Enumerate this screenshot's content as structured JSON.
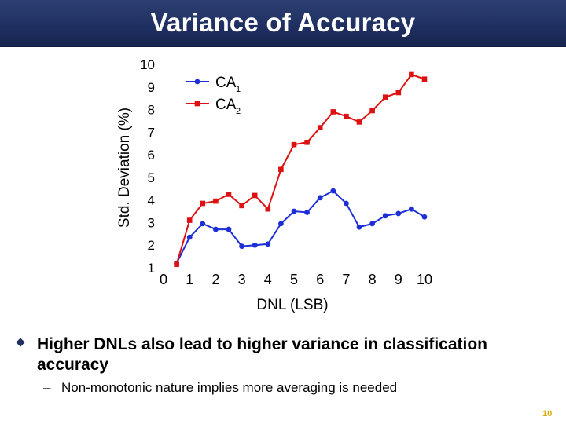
{
  "slide": {
    "title": "Variance of Accuracy",
    "bullet": "Higher DNLs also lead to higher variance in classification accuracy",
    "sub_bullet_marker": "–",
    "sub_bullet": "Non-monotonic nature implies more averaging is needed",
    "page_number": "10"
  },
  "colors": {
    "title_bar": "#203062",
    "title_text": "#ffffff",
    "page_number": "#d9a800"
  },
  "chart_data": {
    "type": "line",
    "title": "",
    "xlabel": "DNL (LSB)",
    "ylabel": "Std. Deviation (%)",
    "xlim": [
      0,
      10
    ],
    "ylim": [
      1,
      10
    ],
    "xticks": [
      0,
      1,
      2,
      3,
      4,
      5,
      6,
      7,
      8,
      9,
      10
    ],
    "yticks": [
      1,
      2,
      3,
      4,
      5,
      6,
      7,
      8,
      9,
      10
    ],
    "grid": false,
    "legend_position": "top-left",
    "x": [
      0.5,
      1,
      1.5,
      2,
      2.5,
      3,
      3.5,
      4,
      4.5,
      5,
      5.5,
      6,
      6.5,
      7,
      7.5,
      8,
      8.5,
      9,
      9.5,
      10
    ],
    "series": [
      {
        "name": "CA",
        "subscript": "1",
        "color": "#1c2fd6",
        "marker": "circle",
        "values": [
          1.2,
          2.35,
          2.95,
          2.7,
          2.7,
          1.95,
          2.0,
          2.05,
          2.95,
          3.5,
          3.45,
          4.1,
          4.4,
          3.85,
          2.8,
          2.95,
          3.3,
          3.4,
          3.6,
          3.25
        ]
      },
      {
        "name": "CA",
        "subscript": "2",
        "color": "#dd1111",
        "marker": "square",
        "values": [
          1.15,
          3.1,
          3.85,
          3.95,
          4.25,
          3.75,
          4.2,
          3.6,
          5.35,
          6.45,
          6.55,
          7.2,
          7.9,
          7.7,
          7.45,
          7.95,
          8.55,
          8.75,
          9.55,
          9.35
        ]
      }
    ]
  }
}
